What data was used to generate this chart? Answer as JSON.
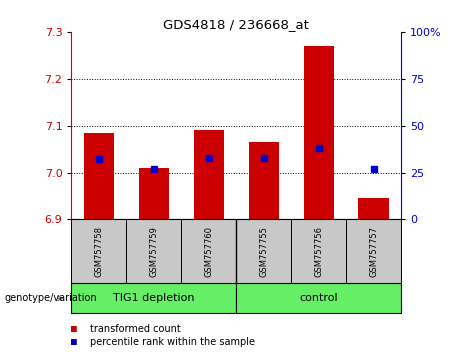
{
  "title": "GDS4818 / 236668_at",
  "samples": [
    "GSM757758",
    "GSM757759",
    "GSM757760",
    "GSM757755",
    "GSM757756",
    "GSM757757"
  ],
  "group_labels": [
    "TIG1 depletion",
    "control"
  ],
  "group_sample_counts": [
    3,
    3
  ],
  "transformed_counts": [
    7.085,
    7.01,
    7.09,
    7.065,
    7.27,
    6.945
  ],
  "percentile_ranks": [
    32,
    27,
    33,
    33,
    38,
    27
  ],
  "ylim_left": [
    6.9,
    7.3
  ],
  "ylim_right": [
    0,
    100
  ],
  "yticks_left": [
    6.9,
    7.0,
    7.1,
    7.2,
    7.3
  ],
  "yticks_right": [
    0,
    25,
    50,
    75,
    100
  ],
  "ytick_right_labels": [
    "0",
    "25",
    "50",
    "75",
    "100%"
  ],
  "grid_yticks": [
    7.0,
    7.1,
    7.2
  ],
  "red_color": "#CC0000",
  "blue_color": "#0000CC",
  "bg_xlabel": "#C8C8C8",
  "bg_group": "#66EE66",
  "legend_red_label": "transformed count",
  "legend_blue_label": "percentile rank within the sample",
  "genotype_label": "genotype/variation",
  "bar_width": 0.55,
  "bar_bottom": 6.9
}
